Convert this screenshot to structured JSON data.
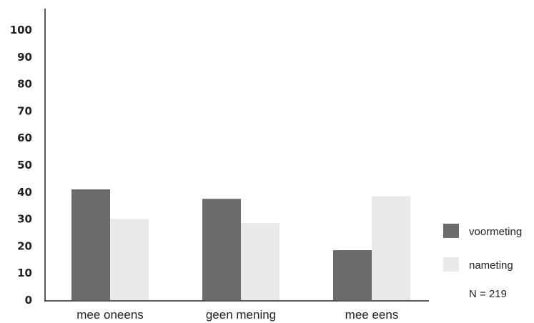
{
  "chart_data": {
    "type": "bar",
    "categories": [
      "mee oneens",
      "geen mening",
      "mee eens"
    ],
    "series": [
      {
        "name": "voormeting",
        "values": [
          41,
          37.5,
          18.5
        ],
        "color": "#6b6b6b"
      },
      {
        "name": "nameting",
        "values": [
          30,
          28.5,
          38.5
        ],
        "color": "#e9e9e9"
      }
    ],
    "ylim": [
      0,
      100
    ],
    "yticks": [
      0,
      10,
      20,
      30,
      40,
      50,
      60,
      70,
      80,
      90,
      100
    ],
    "title": "",
    "xlabel": "",
    "ylabel": "",
    "grid": false,
    "legend_position": "right",
    "annotation": "N = 219"
  }
}
